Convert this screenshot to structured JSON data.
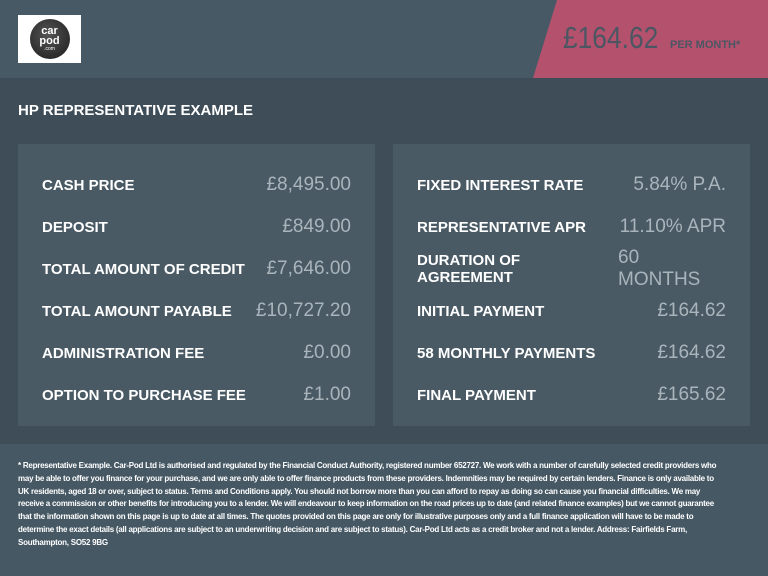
{
  "logo": {
    "text": [
      "car",
      "pod",
      ".com"
    ]
  },
  "header": {
    "price": "£164.62",
    "per_month": "PER MONTH*",
    "accent": "#b4526e"
  },
  "title": "HP REPRESENTATIVE EXAMPLE",
  "left": [
    {
      "label": "CASH PRICE",
      "value": "£8,495.00"
    },
    {
      "label": "DEPOSIT",
      "value": "£849.00"
    },
    {
      "label": "TOTAL AMOUNT OF CREDIT",
      "value": "£7,646.00"
    },
    {
      "label": "TOTAL AMOUNT PAYABLE",
      "value": "£10,727.20"
    },
    {
      "label": "ADMINISTRATION FEE",
      "value": "£0.00"
    },
    {
      "label": "OPTION TO PURCHASE FEE",
      "value": "£1.00"
    }
  ],
  "right": [
    {
      "label": "FIXED INTEREST RATE",
      "value": "5.84% P.A."
    },
    {
      "label": "REPRESENTATIVE APR",
      "value": "11.10% APR"
    },
    {
      "label": "DURATION OF AGREEMENT",
      "value": "60 MONTHS"
    },
    {
      "label": "INITIAL PAYMENT",
      "value": "£164.62"
    },
    {
      "label": "58 MONTHLY PAYMENTS",
      "value": "£164.62"
    },
    {
      "label": "FINAL PAYMENT",
      "value": "£165.62"
    }
  ],
  "footer": "* Representative Example. Car-Pod Ltd is authorised and regulated by the Financial Conduct Authority, registered number 652727. We work with a number of carefully selected credit providers who may be able to offer you finance for your purchase, and we are only able to offer finance products from these providers. Indemnities may be required by certain lenders. Finance is only available to UK residents, aged 18 or over, subject to status. Terms and Conditions apply. You should not borrow more than you can afford to repay as doing so can cause you financial difficulties. We may receive a commission or other benefits for introducing you to a lender. We will endeavour to keep information on the road prices up to date (and related finance examples) but we cannot guarantee that the information shown on this page is up to date at all times. The quotes provided on this page are only for illustrative purposes only and a full finance application will have to be made to determine the exact details (all applications are subject to an underwriting decision and are subject to status). Car-Pod Ltd acts as a credit broker and not a lender. Address: Fairfields Farm, Southampton, SO52 9BG"
}
